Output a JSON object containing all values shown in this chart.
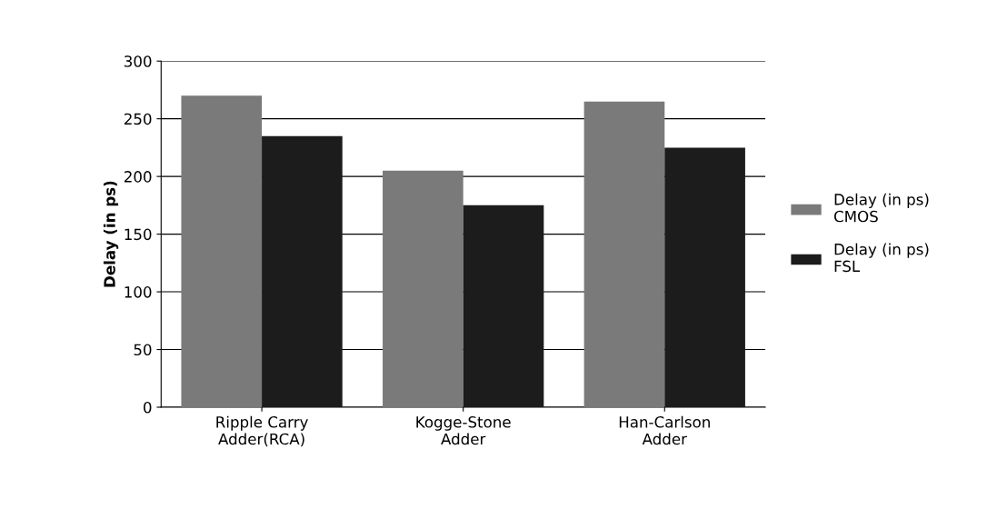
{
  "chart_data": {
    "type": "bar",
    "ylabel": "Delay (in ps)",
    "categories": [
      "Ripple Carry\nAdder(RCA)",
      "Kogge-Stone\nAdder",
      "Han-Carlson\nAdder"
    ],
    "series": [
      {
        "name": "Delay (in ps)\nCMOS",
        "color": "#7a7a7a",
        "values": [
          270,
          205,
          265
        ]
      },
      {
        "name": "Delay (in ps)\nFSL",
        "color": "#1c1c1c",
        "values": [
          235,
          175,
          225
        ]
      }
    ],
    "ylim": [
      0,
      300
    ],
    "yticks": [
      0,
      50,
      100,
      150,
      200,
      250,
      300
    ],
    "grid": "y",
    "legend": "right"
  }
}
